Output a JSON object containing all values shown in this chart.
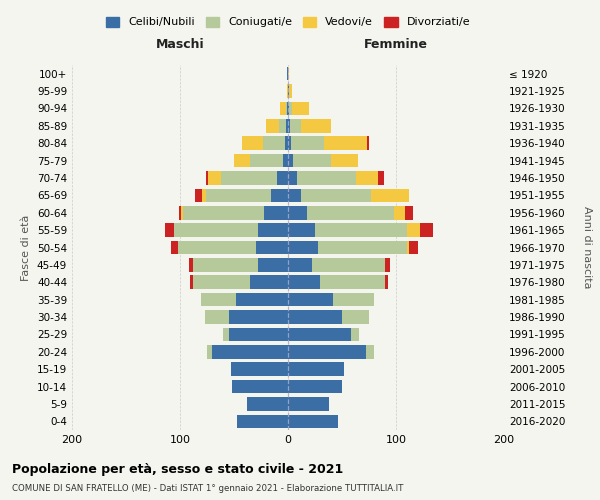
{
  "age_groups": [
    "0-4",
    "5-9",
    "10-14",
    "15-19",
    "20-24",
    "25-29",
    "30-34",
    "35-39",
    "40-44",
    "45-49",
    "50-54",
    "55-59",
    "60-64",
    "65-69",
    "70-74",
    "75-79",
    "80-84",
    "85-89",
    "90-94",
    "95-99",
    "100+"
  ],
  "birth_years": [
    "2016-2020",
    "2011-2015",
    "2006-2010",
    "2001-2005",
    "1996-2000",
    "1991-1995",
    "1986-1990",
    "1981-1985",
    "1976-1980",
    "1971-1975",
    "1966-1970",
    "1961-1965",
    "1956-1960",
    "1951-1955",
    "1946-1950",
    "1941-1945",
    "1936-1940",
    "1931-1935",
    "1926-1930",
    "1921-1925",
    "≤ 1920"
  ],
  "colors": {
    "celibi": "#3a6ea5",
    "coniugati": "#b5c99a",
    "vedovi": "#f5c842",
    "divorziati": "#cc2222"
  },
  "maschi": {
    "celibi": [
      47,
      38,
      52,
      53,
      70,
      55,
      55,
      48,
      35,
      28,
      30,
      28,
      22,
      16,
      10,
      5,
      3,
      2,
      1,
      0,
      1
    ],
    "coniugati": [
      0,
      0,
      0,
      0,
      5,
      5,
      22,
      33,
      53,
      60,
      72,
      78,
      75,
      60,
      52,
      30,
      20,
      6,
      1,
      0,
      0
    ],
    "vedovi": [
      0,
      0,
      0,
      0,
      0,
      0,
      0,
      0,
      0,
      0,
      0,
      0,
      2,
      4,
      12,
      15,
      20,
      12,
      5,
      1,
      0
    ],
    "divorziati": [
      0,
      0,
      0,
      0,
      0,
      0,
      0,
      0,
      3,
      4,
      6,
      8,
      2,
      6,
      2,
      0,
      0,
      0,
      0,
      0,
      0
    ]
  },
  "femmine": {
    "celibi": [
      46,
      38,
      50,
      52,
      72,
      58,
      50,
      42,
      30,
      22,
      28,
      25,
      18,
      12,
      8,
      5,
      3,
      2,
      1,
      1,
      0
    ],
    "coniugati": [
      0,
      0,
      0,
      0,
      8,
      8,
      25,
      38,
      60,
      68,
      82,
      85,
      80,
      65,
      55,
      35,
      30,
      10,
      3,
      0,
      0
    ],
    "vedovi": [
      0,
      0,
      0,
      0,
      0,
      0,
      0,
      0,
      0,
      0,
      2,
      12,
      10,
      35,
      20,
      25,
      40,
      28,
      15,
      3,
      1
    ],
    "divorziati": [
      0,
      0,
      0,
      0,
      0,
      0,
      0,
      0,
      3,
      4,
      8,
      12,
      8,
      0,
      6,
      0,
      2,
      0,
      0,
      0,
      0
    ]
  },
  "xlim": 200,
  "title": "Popolazione per età, sesso e stato civile - 2021",
  "subtitle": "COMUNE DI SAN FRATELLO (ME) - Dati ISTAT 1° gennaio 2021 - Elaborazione TUTTITALIA.IT",
  "ylabel_left": "Fasce di età",
  "ylabel_right": "Anni di nascita",
  "maschi_label": "Maschi",
  "femmine_label": "Femmine",
  "legend_labels": [
    "Celibi/Nubili",
    "Coniugati/e",
    "Vedovi/e",
    "Divorziati/e"
  ],
  "bg_color": "#f5f5f0"
}
